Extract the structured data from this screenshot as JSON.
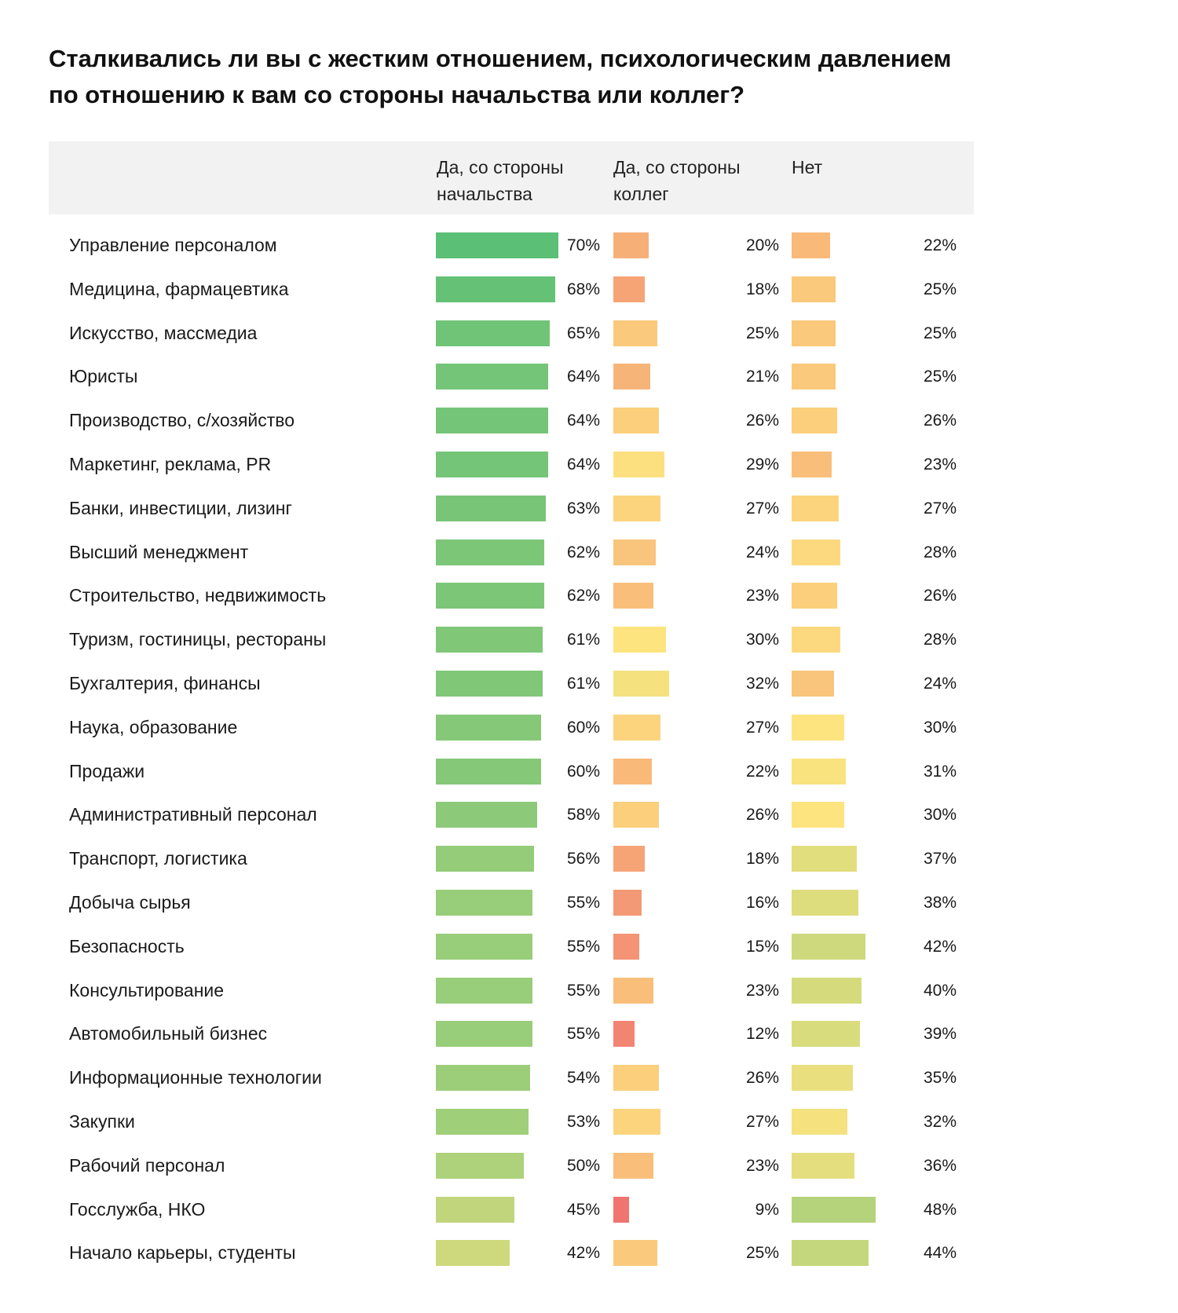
{
  "chart_data": {
    "type": "table",
    "title": "Сталкивались ли вы с жестким отношением, психологическим давлением по отношению к вам со стороны начальства или коллег?",
    "columns": [
      "Да, со стороны начальства",
      "Да, со стороны коллег",
      "Нет"
    ],
    "rows": [
      {
        "label": "Управление персоналом",
        "boss": 70,
        "colleagues": 20,
        "no": 22
      },
      {
        "label": "Медицина, фармацевтика",
        "boss": 68,
        "colleagues": 18,
        "no": 25
      },
      {
        "label": "Искусство, массмедиа",
        "boss": 65,
        "colleagues": 25,
        "no": 25
      },
      {
        "label": "Юристы",
        "boss": 64,
        "colleagues": 21,
        "no": 25
      },
      {
        "label": "Производство, с/хозяйство",
        "boss": 64,
        "colleagues": 26,
        "no": 26
      },
      {
        "label": "Маркетинг, реклама, PR",
        "boss": 64,
        "colleagues": 29,
        "no": 23
      },
      {
        "label": "Банки, инвестиции, лизинг",
        "boss": 63,
        "colleagues": 27,
        "no": 27
      },
      {
        "label": "Высший менеджмент",
        "boss": 62,
        "colleagues": 24,
        "no": 28
      },
      {
        "label": "Строительство, недвижимость",
        "boss": 62,
        "colleagues": 23,
        "no": 26
      },
      {
        "label": "Туризм, гостиницы, рестораны",
        "boss": 61,
        "colleagues": 30,
        "no": 28
      },
      {
        "label": "Бухгалтерия, финансы",
        "boss": 61,
        "colleagues": 32,
        "no": 24
      },
      {
        "label": "Наука, образование",
        "boss": 60,
        "colleagues": 27,
        "no": 30
      },
      {
        "label": "Продажи",
        "boss": 60,
        "colleagues": 22,
        "no": 31
      },
      {
        "label": "Административный персонал",
        "boss": 58,
        "colleagues": 26,
        "no": 30
      },
      {
        "label": "Транспорт, логистика",
        "boss": 56,
        "colleagues": 18,
        "no": 37
      },
      {
        "label": "Добыча сырья",
        "boss": 55,
        "colleagues": 16,
        "no": 38
      },
      {
        "label": "Безопасность",
        "boss": 55,
        "colleagues": 15,
        "no": 42
      },
      {
        "label": "Консультирование",
        "boss": 55,
        "colleagues": 23,
        "no": 40
      },
      {
        "label": "Автомобильный бизнес",
        "boss": 55,
        "colleagues": 12,
        "no": 39
      },
      {
        "label": "Информационные технологии",
        "boss": 54,
        "colleagues": 26,
        "no": 35
      },
      {
        "label": "Закупки",
        "boss": 53,
        "colleagues": 27,
        "no": 32
      },
      {
        "label": "Рабочий персонал",
        "boss": 50,
        "colleagues": 23,
        "no": 36
      },
      {
        "label": "Госслужба, НКО",
        "boss": 45,
        "colleagues": 9,
        "no": 48
      },
      {
        "label": "Начало карьеры, студенты",
        "boss": 42,
        "colleagues": 25,
        "no": 44
      }
    ],
    "value_suffix": "%",
    "color_scale": {
      "low": "#f07470",
      "mid": "#fde47f",
      "high": "#5cbf76"
    }
  }
}
